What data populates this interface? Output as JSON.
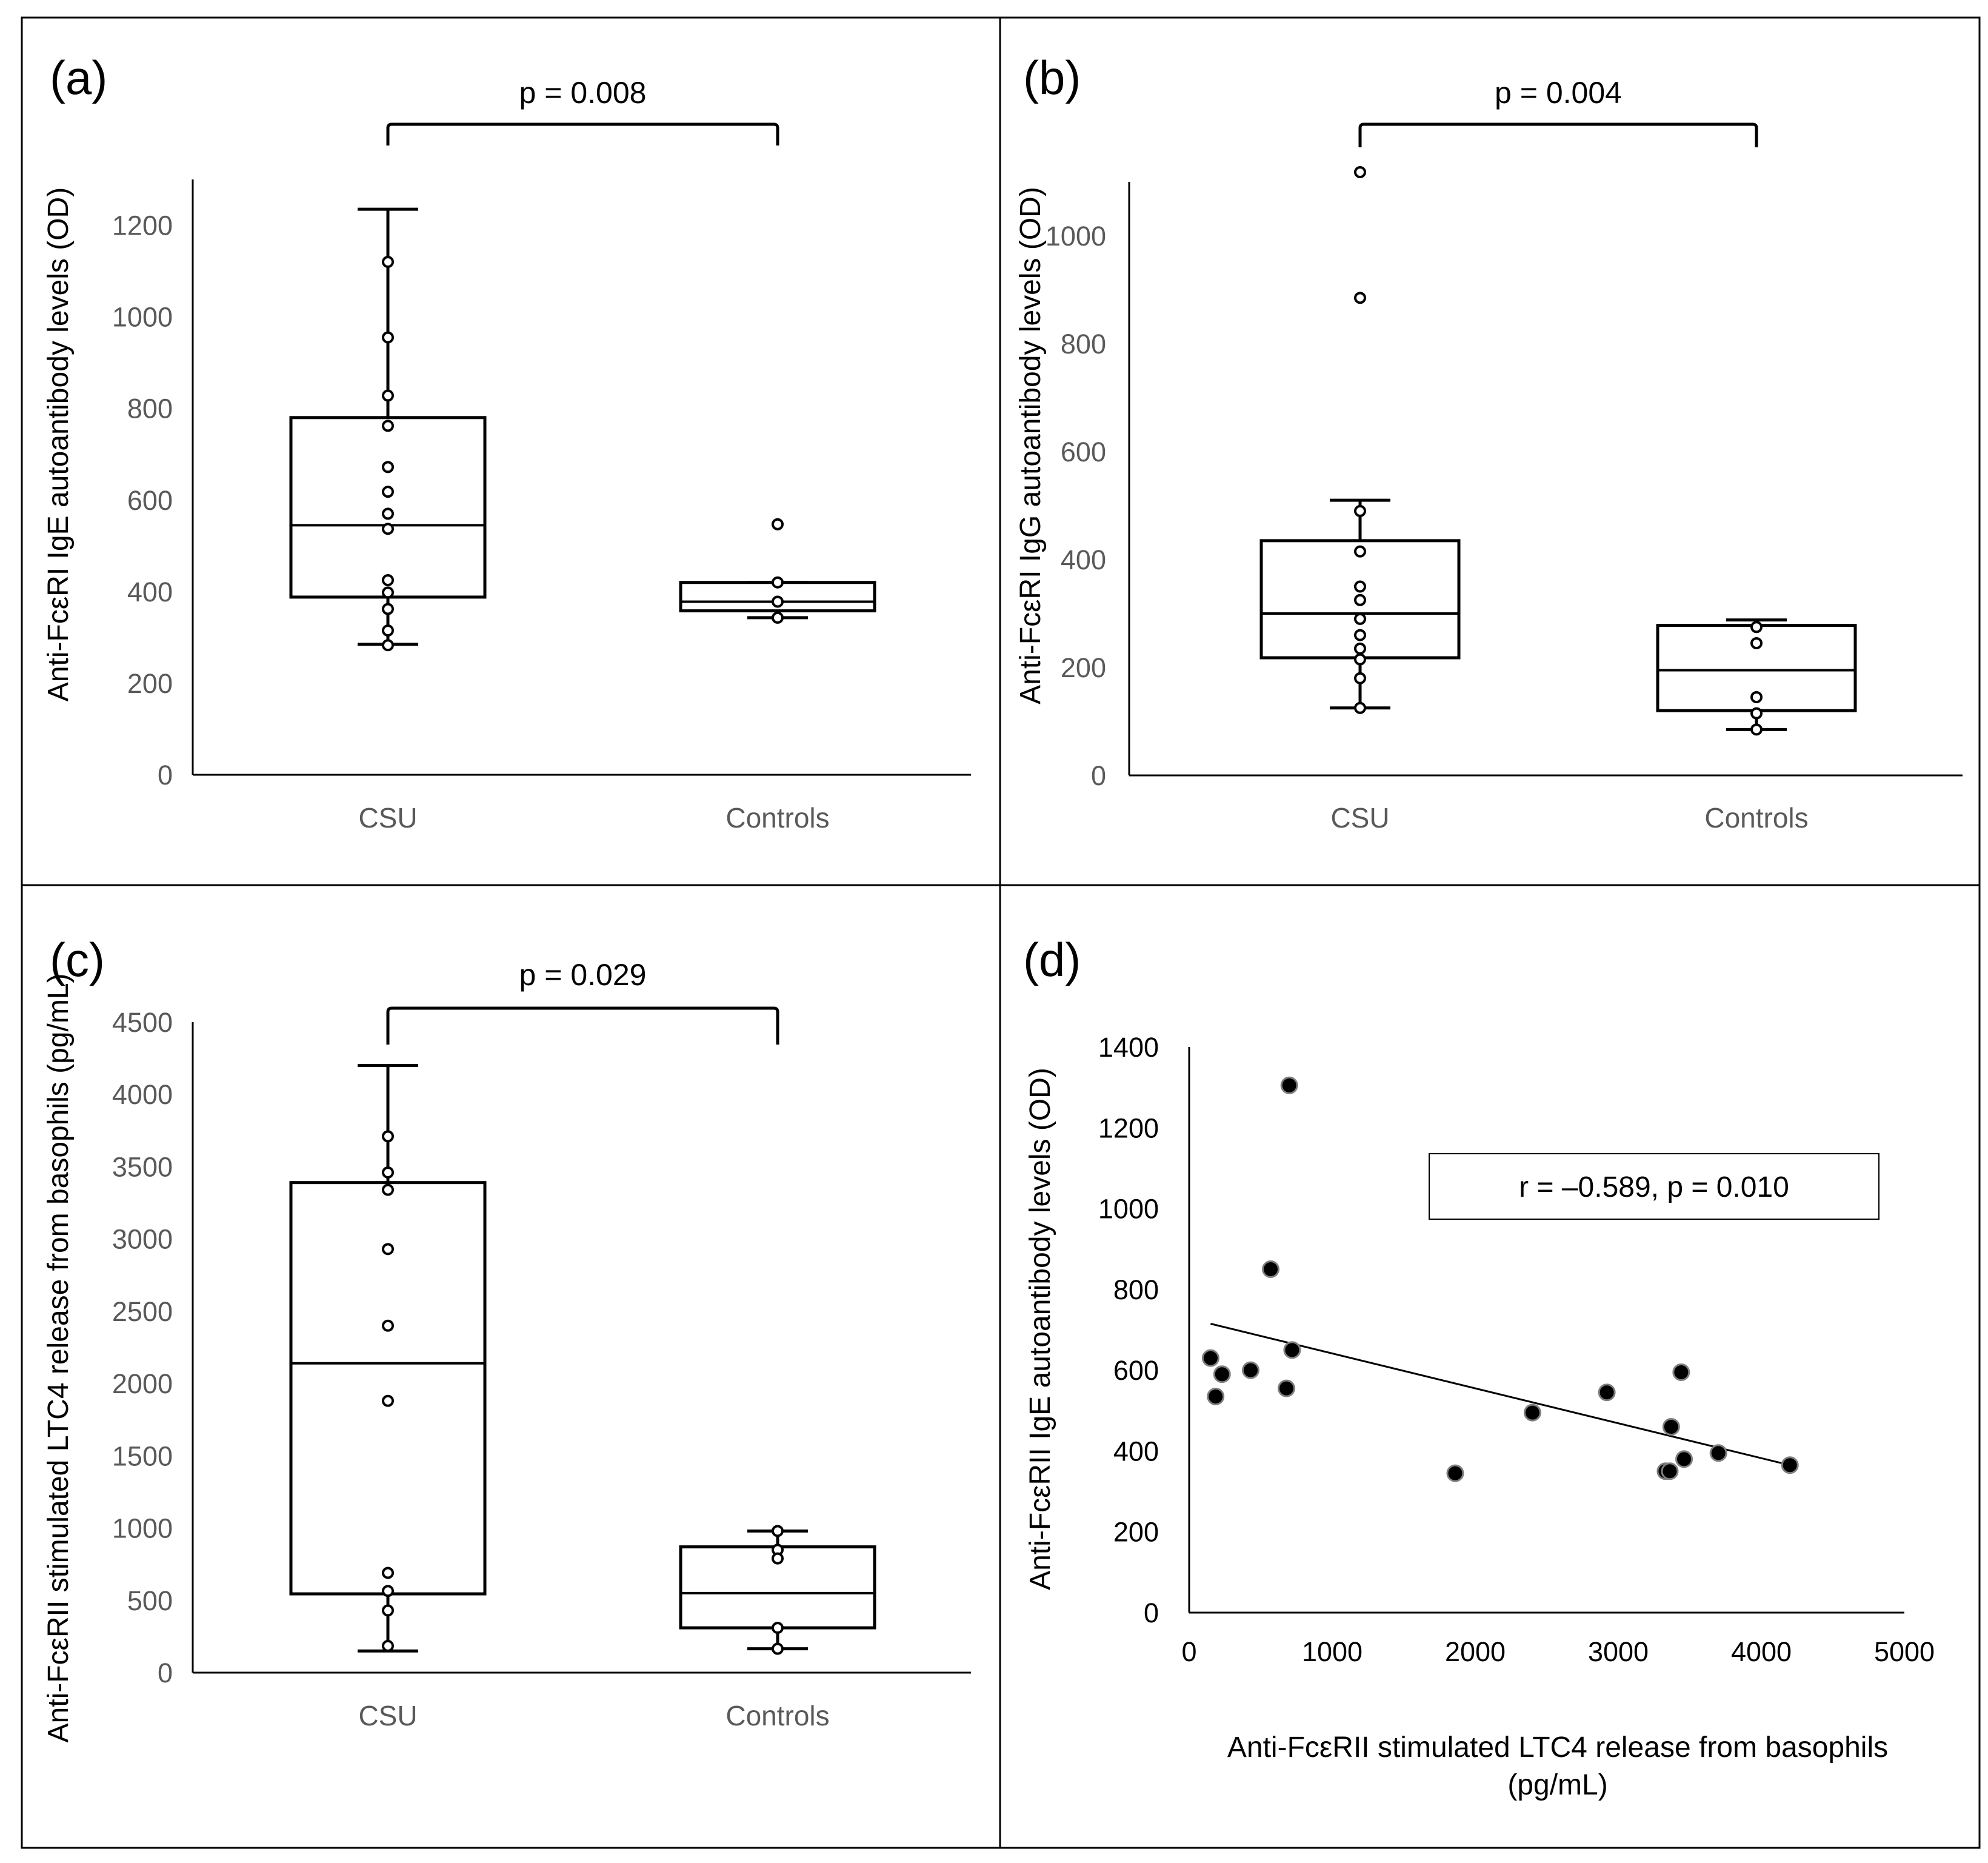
{
  "chart_data": [
    {
      "type": "box",
      "panel_label": "(a)",
      "ylabel": "Anti-FcεRI IgE autoantibody levels (OD)",
      "ylim": [
        0,
        1300
      ],
      "yticks": [
        0,
        200,
        400,
        600,
        800,
        1000,
        1200
      ],
      "categories": [
        "CSU",
        "Controls"
      ],
      "significance": {
        "text": "p = 0.008",
        "between": [
          "CSU",
          "Controls"
        ]
      },
      "boxes": [
        {
          "category": "CSU",
          "min": 285,
          "q1": 388,
          "median": 545,
          "q3": 780,
          "max": 1235,
          "points": [
            1120,
            955,
            828,
            762,
            672,
            618,
            570,
            537,
            425,
            398,
            362,
            315,
            283
          ]
        },
        {
          "category": "Controls",
          "min": 343,
          "q1": 358,
          "median": 378,
          "q3": 420,
          "max": 420,
          "points": [
            547,
            420,
            378,
            343
          ]
        }
      ],
      "grid": false
    },
    {
      "type": "box",
      "panel_label": "(b)",
      "ylabel": "Anti-FcεRI IgG autoantibody levels (OD)",
      "ylim": [
        0,
        1100
      ],
      "yticks": [
        0,
        200,
        400,
        600,
        800,
        1000
      ],
      "categories": [
        "CSU",
        "Controls"
      ],
      "significance": {
        "text": "p = 0.004",
        "between": [
          "CSU",
          "Controls"
        ]
      },
      "boxes": [
        {
          "category": "CSU",
          "min": 125,
          "q1": 218,
          "median": 300,
          "q3": 435,
          "max": 510,
          "points": [
            1118,
            885,
            490,
            415,
            350,
            325,
            290,
            260,
            235,
            215,
            180,
            125
          ]
        },
        {
          "category": "Controls",
          "min": 85,
          "q1": 120,
          "median": 195,
          "q3": 278,
          "max": 288,
          "points": [
            275,
            245,
            145,
            115,
            85
          ]
        }
      ],
      "grid": false
    },
    {
      "type": "box",
      "panel_label": "(c)",
      "ylabel": "Anti-FcεRII stimulated LTC4 release from basophils (pg/mL)",
      "ylim": [
        0,
        4500
      ],
      "yticks": [
        0,
        500,
        1000,
        1500,
        2000,
        2500,
        3000,
        3500,
        4000,
        4500
      ],
      "categories": [
        "CSU",
        "Controls"
      ],
      "significance": {
        "text": "p = 0.029",
        "between": [
          "CSU",
          "Controls"
        ]
      },
      "boxes": [
        {
          "category": "CSU",
          "min": 150,
          "q1": 545,
          "median": 2140,
          "q3": 3390,
          "max": 4200,
          "points": [
            3710,
            3460,
            3340,
            2930,
            2400,
            1880,
            690,
            565,
            430,
            185
          ]
        },
        {
          "category": "Controls",
          "min": 165,
          "q1": 310,
          "median": 550,
          "q3": 870,
          "max": 980,
          "points": [
            980,
            850,
            790,
            310,
            165
          ]
        }
      ],
      "grid": false
    },
    {
      "type": "scatter",
      "panel_label": "(d)",
      "xlabel": "Anti-FcεRII stimulated LTC4 release from basophils (pg/mL)",
      "ylabel": "Anti-FcεRII IgE autoantibody levels (OD)",
      "xlim": [
        0,
        5000
      ],
      "ylim": [
        0,
        1400
      ],
      "xticks": [
        0,
        1000,
        2000,
        3000,
        4000,
        5000
      ],
      "yticks": [
        0,
        200,
        400,
        600,
        800,
        1000,
        1200,
        1400
      ],
      "x": [
        150,
        185,
        230,
        430,
        570,
        680,
        700,
        720,
        1860,
        2400,
        2920,
        3330,
        3360,
        3370,
        3440,
        3460,
        3700,
        4200
      ],
      "y": [
        630,
        535,
        590,
        600,
        850,
        555,
        1305,
        650,
        345,
        495,
        545,
        350,
        350,
        460,
        595,
        380,
        395,
        365
      ],
      "trendline": {
        "x": [
          150,
          4200
        ],
        "y": [
          715,
          365
        ]
      },
      "annotation": "r = –0.589, p = 0.010",
      "grid": false
    }
  ]
}
